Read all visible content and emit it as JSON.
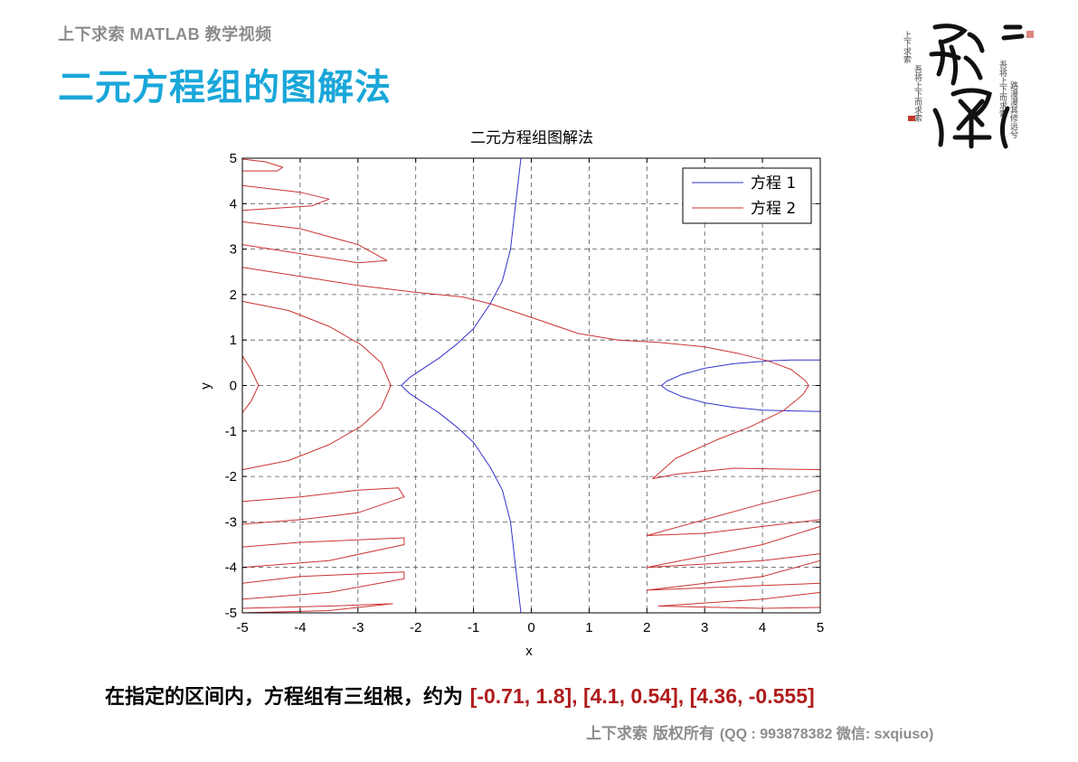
{
  "header": {
    "caption": "上下求索 MATLAB 教学视频",
    "title": "二元方程组的图解法"
  },
  "seal": {
    "icon": "calligraphy-seal-icon",
    "main_text": "求索",
    "side_text": "吾将上下而求索"
  },
  "conclusion": {
    "prefix": "在指定的区间内，方程组有三组根，约为 ",
    "roots": "[-0.71, 1.8], [4.1, 0.54], [4.36, -0.555]"
  },
  "footer": {
    "owner": "上下求索  版权所有",
    "contact": "(QQ : 993878382   微信: sxqiuso)"
  },
  "chart_data": {
    "type": "line",
    "title": "二元方程组图解法",
    "xlabel": "x",
    "ylabel": "y",
    "xlim": [
      -5,
      5
    ],
    "ylim": [
      -5,
      5
    ],
    "xticks": [
      -5,
      -4,
      -3,
      -2,
      -1,
      0,
      1,
      2,
      3,
      4,
      5
    ],
    "yticks": [
      -5,
      -4,
      -3,
      -2,
      -1,
      0,
      1,
      2,
      3,
      4,
      5
    ],
    "grid": true,
    "legend_position": "top-right",
    "series": [
      {
        "name": "方程 1",
        "color": "#3333cc",
        "curves": [
          [
            [
              -0.18,
              5
            ],
            [
              -0.27,
              4
            ],
            [
              -0.36,
              3
            ],
            [
              -0.5,
              2.3
            ],
            [
              -0.71,
              1.8
            ],
            [
              -1.0,
              1.25
            ],
            [
              -1.3,
              0.9
            ],
            [
              -1.6,
              0.6
            ],
            [
              -1.9,
              0.35
            ],
            [
              -2.1,
              0.18
            ],
            [
              -2.25,
              0
            ],
            [
              -2.1,
              -0.18
            ],
            [
              -1.9,
              -0.35
            ],
            [
              -1.6,
              -0.6
            ],
            [
              -1.3,
              -0.9
            ],
            [
              -1.0,
              -1.25
            ],
            [
              -0.71,
              -1.8
            ],
            [
              -0.5,
              -2.3
            ],
            [
              -0.36,
              -3
            ],
            [
              -0.27,
              -4
            ],
            [
              -0.18,
              -5
            ]
          ],
          [
            [
              5,
              0.56
            ],
            [
              4.5,
              0.56
            ],
            [
              4.1,
              0.54
            ],
            [
              3.5,
              0.48
            ],
            [
              3.0,
              0.38
            ],
            [
              2.6,
              0.24
            ],
            [
              2.35,
              0.1
            ],
            [
              2.25,
              0
            ],
            [
              2.35,
              -0.1
            ],
            [
              2.6,
              -0.24
            ],
            [
              3.0,
              -0.38
            ],
            [
              3.5,
              -0.48
            ],
            [
              4.0,
              -0.54
            ],
            [
              4.36,
              -0.555
            ],
            [
              5,
              -0.57
            ]
          ]
        ]
      },
      {
        "name": "方程 2",
        "color": "#cc3333",
        "curves": [
          [
            [
              -5,
              2.6
            ],
            [
              -4,
              2.4
            ],
            [
              -3,
              2.2
            ],
            [
              -2,
              2.05
            ],
            [
              -1.2,
              1.95
            ],
            [
              -0.71,
              1.8
            ],
            [
              0,
              1.5
            ],
            [
              0.8,
              1.15
            ],
            [
              1.5,
              1.0
            ],
            [
              2.2,
              0.95
            ],
            [
              3.0,
              0.85
            ],
            [
              3.6,
              0.7
            ],
            [
              4.1,
              0.54
            ],
            [
              4.5,
              0.35
            ],
            [
              4.75,
              0.1
            ],
            [
              4.8,
              0
            ],
            [
              4.7,
              -0.2
            ],
            [
              4.36,
              -0.555
            ],
            [
              3.8,
              -0.9
            ],
            [
              3.2,
              -1.2
            ],
            [
              2.5,
              -1.6
            ],
            [
              2.1,
              -2.05
            ],
            [
              2.5,
              -1.95
            ],
            [
              3.5,
              -1.82
            ],
            [
              5,
              -1.85
            ]
          ],
          [
            [
              -5,
              1.85
            ],
            [
              -4.2,
              1.65
            ],
            [
              -3.5,
              1.3
            ],
            [
              -2.95,
              0.9
            ],
            [
              -2.6,
              0.5
            ],
            [
              -2.43,
              0
            ],
            [
              -2.6,
              -0.5
            ],
            [
              -2.95,
              -0.9
            ],
            [
              -3.5,
              -1.3
            ],
            [
              -4.2,
              -1.65
            ],
            [
              -5,
              -1.85
            ]
          ],
          [
            [
              -5,
              0.65
            ],
            [
              -4.85,
              0.35
            ],
            [
              -4.72,
              0
            ],
            [
              -4.85,
              -0.35
            ],
            [
              -5,
              -0.6
            ]
          ],
          [
            [
              -5,
              4.98
            ],
            [
              -4.6,
              4.92
            ],
            [
              -4.3,
              4.8
            ],
            [
              -4.4,
              4.72
            ],
            [
              -5,
              4.72
            ]
          ],
          [
            [
              -5,
              4.4
            ],
            [
              -4.0,
              4.25
            ],
            [
              -3.5,
              4.1
            ],
            [
              -3.8,
              3.95
            ],
            [
              -5,
              3.85
            ]
          ],
          [
            [
              -5,
              3.6
            ],
            [
              -4.0,
              3.45
            ],
            [
              -3.0,
              3.1
            ],
            [
              -2.5,
              2.75
            ],
            [
              -3.0,
              2.7
            ],
            [
              -4.0,
              2.9
            ],
            [
              -5,
              3.1
            ]
          ],
          [
            [
              -5,
              -2.55
            ],
            [
              -4.0,
              -2.45
            ],
            [
              -3.0,
              -2.3
            ],
            [
              -2.3,
              -2.25
            ],
            [
              -2.2,
              -2.45
            ],
            [
              -3.0,
              -2.8
            ],
            [
              -4.0,
              -2.95
            ],
            [
              -5,
              -3.05
            ]
          ],
          [
            [
              -5,
              -3.55
            ],
            [
              -4.0,
              -3.45
            ],
            [
              -2.2,
              -3.35
            ],
            [
              -2.2,
              -3.5
            ],
            [
              -3.5,
              -3.85
            ],
            [
              -5,
              -4.0
            ]
          ],
          [
            [
              -5,
              -4.35
            ],
            [
              -4.0,
              -4.2
            ],
            [
              -2.2,
              -4.1
            ],
            [
              -2.2,
              -4.25
            ],
            [
              -3.5,
              -4.55
            ],
            [
              -5,
              -4.7
            ]
          ],
          [
            [
              -5,
              -4.9
            ],
            [
              -3.5,
              -4.85
            ],
            [
              -2.4,
              -4.8
            ],
            [
              -3.5,
              -4.95
            ],
            [
              -5,
              -5.0
            ]
          ],
          [
            [
              5,
              -2.3
            ],
            [
              4.0,
              -2.6
            ],
            [
              3.0,
              -2.95
            ],
            [
              2.0,
              -3.3
            ],
            [
              3.0,
              -3.25
            ],
            [
              4.0,
              -3.1
            ],
            [
              5,
              -2.95
            ]
          ],
          [
            [
              5,
              -3.1
            ],
            [
              4.0,
              -3.5
            ],
            [
              2.0,
              -4.0
            ],
            [
              4.0,
              -3.85
            ],
            [
              5,
              -3.7
            ]
          ],
          [
            [
              5,
              -3.85
            ],
            [
              4.0,
              -4.2
            ],
            [
              2.0,
              -4.5
            ],
            [
              4.0,
              -4.4
            ],
            [
              5,
              -4.35
            ]
          ],
          [
            [
              5,
              -4.55
            ],
            [
              4.0,
              -4.7
            ],
            [
              2.2,
              -4.85
            ],
            [
              4.0,
              -4.9
            ],
            [
              5,
              -4.88
            ]
          ]
        ]
      }
    ]
  }
}
